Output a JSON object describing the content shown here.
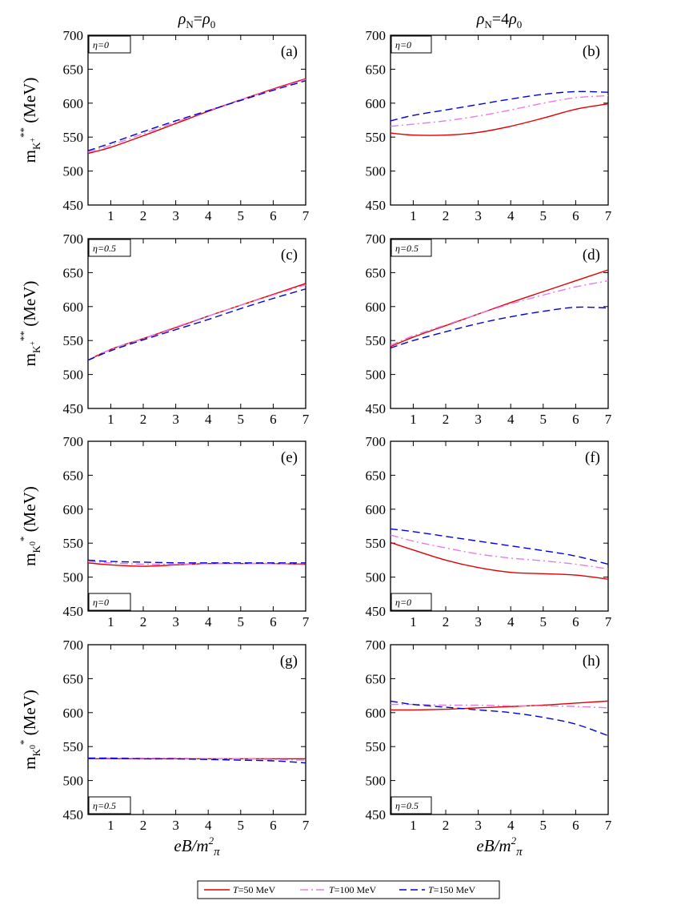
{
  "column_titles": [
    {
      "rho": "ρ",
      "sub": "N",
      "rest": "=ρ",
      "sub2": "0",
      "prefix": ""
    },
    {
      "rho": "ρ",
      "sub": "N",
      "rest": "=4ρ",
      "sub2": "0",
      "prefix": ""
    }
  ],
  "ylabels": {
    "kplus": {
      "main": "m",
      "sub": "K",
      "subsup": "+",
      "sup": "**",
      "unit": "(MeV)"
    },
    "kzero": {
      "main": "m",
      "sub": "K",
      "subsup": "0",
      "sup": "*",
      "unit": "(MeV)"
    }
  },
  "xlabel": {
    "main": "eB/m",
    "sup": "2",
    "sub": "π"
  },
  "legend": [
    {
      "name": "T=50 MeV",
      "color": "#e00000",
      "dash": "solid"
    },
    {
      "name": "T=100 MeV",
      "color": "#e87ae8",
      "dash": "dashdot"
    },
    {
      "name": "T=150 MeV",
      "color": "#0000d8",
      "dash": "dashed"
    }
  ],
  "chart_data": [
    {
      "type": "line",
      "panel": "(a)",
      "eta": "η=0",
      "eta_pos": "top-left",
      "xlim": [
        0.3,
        7
      ],
      "ylim": [
        450,
        700
      ],
      "xticks": [
        1,
        2,
        3,
        4,
        5,
        6,
        7
      ],
      "yticks": [
        450,
        500,
        550,
        600,
        650,
        700
      ],
      "x": [
        0.3,
        1,
        2,
        3,
        4,
        5,
        6,
        7
      ],
      "series": [
        {
          "name": "T=50 MeV",
          "values": [
            526,
            535,
            552,
            570,
            588,
            605,
            621,
            636
          ]
        },
        {
          "name": "T=100 MeV",
          "values": [
            528,
            538,
            555,
            572,
            589,
            605,
            620,
            635
          ]
        },
        {
          "name": "T=150 MeV",
          "values": [
            530,
            541,
            558,
            574,
            589,
            604,
            619,
            633
          ]
        }
      ]
    },
    {
      "type": "line",
      "panel": "(b)",
      "eta": "η=0",
      "eta_pos": "top-left",
      "xlim": [
        0.3,
        7
      ],
      "ylim": [
        450,
        700
      ],
      "xticks": [
        1,
        2,
        3,
        4,
        5,
        6,
        7
      ],
      "yticks": [
        450,
        500,
        550,
        600,
        650,
        700
      ],
      "x": [
        0.3,
        1,
        2,
        3,
        4,
        5,
        6,
        7
      ],
      "series": [
        {
          "name": "T=50 MeV",
          "values": [
            556,
            553,
            553,
            557,
            566,
            578,
            591,
            599
          ]
        },
        {
          "name": "T=100 MeV",
          "values": [
            566,
            569,
            574,
            581,
            590,
            600,
            608,
            611
          ]
        },
        {
          "name": "T=150 MeV",
          "values": [
            574,
            582,
            590,
            598,
            606,
            613,
            617,
            616
          ]
        }
      ]
    },
    {
      "type": "line",
      "panel": "(c)",
      "eta": "η=0.5",
      "eta_pos": "top-left",
      "xlim": [
        0.3,
        7
      ],
      "ylim": [
        450,
        700
      ],
      "xticks": [
        1,
        2,
        3,
        4,
        5,
        6,
        7
      ],
      "yticks": [
        450,
        500,
        550,
        600,
        650,
        700
      ],
      "x": [
        0.3,
        1,
        2,
        3,
        4,
        5,
        6,
        7
      ],
      "series": [
        {
          "name": "T=50 MeV",
          "values": [
            521,
            537,
            553,
            569,
            586,
            602,
            618,
            634
          ]
        },
        {
          "name": "T=100 MeV",
          "values": [
            521,
            537,
            553,
            570,
            586,
            602,
            617,
            632
          ]
        },
        {
          "name": "T=150 MeV",
          "values": [
            521,
            535,
            551,
            566,
            581,
            597,
            612,
            626
          ]
        }
      ]
    },
    {
      "type": "line",
      "panel": "(d)",
      "eta": "η=0.5",
      "eta_pos": "top-left",
      "xlim": [
        0.3,
        7
      ],
      "ylim": [
        450,
        700
      ],
      "xticks": [
        1,
        2,
        3,
        4,
        5,
        6,
        7
      ],
      "yticks": [
        450,
        500,
        550,
        600,
        650,
        700
      ],
      "x": [
        0.3,
        1,
        2,
        3,
        4,
        5,
        6,
        7
      ],
      "series": [
        {
          "name": "T=50 MeV",
          "values": [
            541,
            555,
            572,
            589,
            606,
            622,
            638,
            654
          ]
        },
        {
          "name": "T=100 MeV",
          "values": [
            543,
            557,
            573,
            589,
            604,
            617,
            629,
            638
          ]
        },
        {
          "name": "T=150 MeV",
          "values": [
            539,
            550,
            563,
            575,
            585,
            593,
            599,
            598
          ]
        }
      ]
    },
    {
      "type": "line",
      "panel": "(e)",
      "eta": "η=0",
      "eta_pos": "bottom-left",
      "xlim": [
        0.3,
        7
      ],
      "ylim": [
        450,
        700
      ],
      "xticks": [
        1,
        2,
        3,
        4,
        5,
        6,
        7
      ],
      "yticks": [
        450,
        500,
        550,
        600,
        650,
        700
      ],
      "x": [
        0.3,
        1,
        2,
        3,
        4,
        5,
        6,
        7
      ],
      "series": [
        {
          "name": "T=50 MeV",
          "values": [
            521,
            518,
            516,
            518,
            520,
            520,
            520,
            519
          ]
        },
        {
          "name": "T=100 MeV",
          "values": [
            523,
            521,
            519,
            519,
            520,
            520,
            520,
            520
          ]
        },
        {
          "name": "T=150 MeV",
          "values": [
            525,
            523,
            522,
            521,
            521,
            521,
            521,
            521
          ]
        }
      ]
    },
    {
      "type": "line",
      "panel": "(f)",
      "eta": "η=0",
      "eta_pos": "bottom-left",
      "xlim": [
        0.3,
        7
      ],
      "ylim": [
        450,
        700
      ],
      "xticks": [
        1,
        2,
        3,
        4,
        5,
        6,
        7
      ],
      "yticks": [
        450,
        500,
        550,
        600,
        650,
        700
      ],
      "x": [
        0.3,
        1,
        2,
        3,
        4,
        5,
        6,
        7
      ],
      "series": [
        {
          "name": "T=50 MeV",
          "values": [
            551,
            540,
            525,
            514,
            507,
            505,
            503,
            497
          ]
        },
        {
          "name": "T=100 MeV",
          "values": [
            562,
            553,
            543,
            534,
            528,
            524,
            519,
            512
          ]
        },
        {
          "name": "T=150 MeV",
          "values": [
            571,
            567,
            560,
            553,
            546,
            539,
            531,
            519
          ]
        }
      ]
    },
    {
      "type": "line",
      "panel": "(g)",
      "eta": "η=0.5",
      "eta_pos": "bottom-left",
      "xlim": [
        0.3,
        7
      ],
      "ylim": [
        450,
        700
      ],
      "xticks": [
        1,
        2,
        3,
        4,
        5,
        6,
        7
      ],
      "yticks": [
        450,
        500,
        550,
        600,
        650,
        700
      ],
      "x": [
        0.3,
        1,
        2,
        3,
        4,
        5,
        6,
        7
      ],
      "series": [
        {
          "name": "T=50 MeV",
          "values": [
            532,
            532,
            532,
            532,
            532,
            532,
            532,
            532
          ]
        },
        {
          "name": "T=100 MeV",
          "values": [
            533,
            533,
            533,
            533,
            532,
            532,
            531,
            530
          ]
        },
        {
          "name": "T=150 MeV",
          "values": [
            533,
            533,
            532,
            532,
            531,
            530,
            529,
            526
          ]
        }
      ]
    },
    {
      "type": "line",
      "panel": "(h)",
      "eta": "η=0.5",
      "eta_pos": "bottom-left",
      "xlim": [
        0.3,
        7
      ],
      "ylim": [
        450,
        700
      ],
      "xticks": [
        1,
        2,
        3,
        4,
        5,
        6,
        7
      ],
      "yticks": [
        450,
        500,
        550,
        600,
        650,
        700
      ],
      "x": [
        0.3,
        1,
        2,
        3,
        4,
        5,
        6,
        7
      ],
      "series": [
        {
          "name": "T=50 MeV",
          "values": [
            604,
            604,
            605,
            607,
            609,
            611,
            614,
            617
          ]
        },
        {
          "name": "T=100 MeV",
          "values": [
            612,
            612,
            611,
            611,
            610,
            610,
            609,
            607
          ]
        },
        {
          "name": "T=150 MeV",
          "values": [
            617,
            612,
            608,
            604,
            600,
            593,
            583,
            566
          ]
        }
      ]
    }
  ]
}
